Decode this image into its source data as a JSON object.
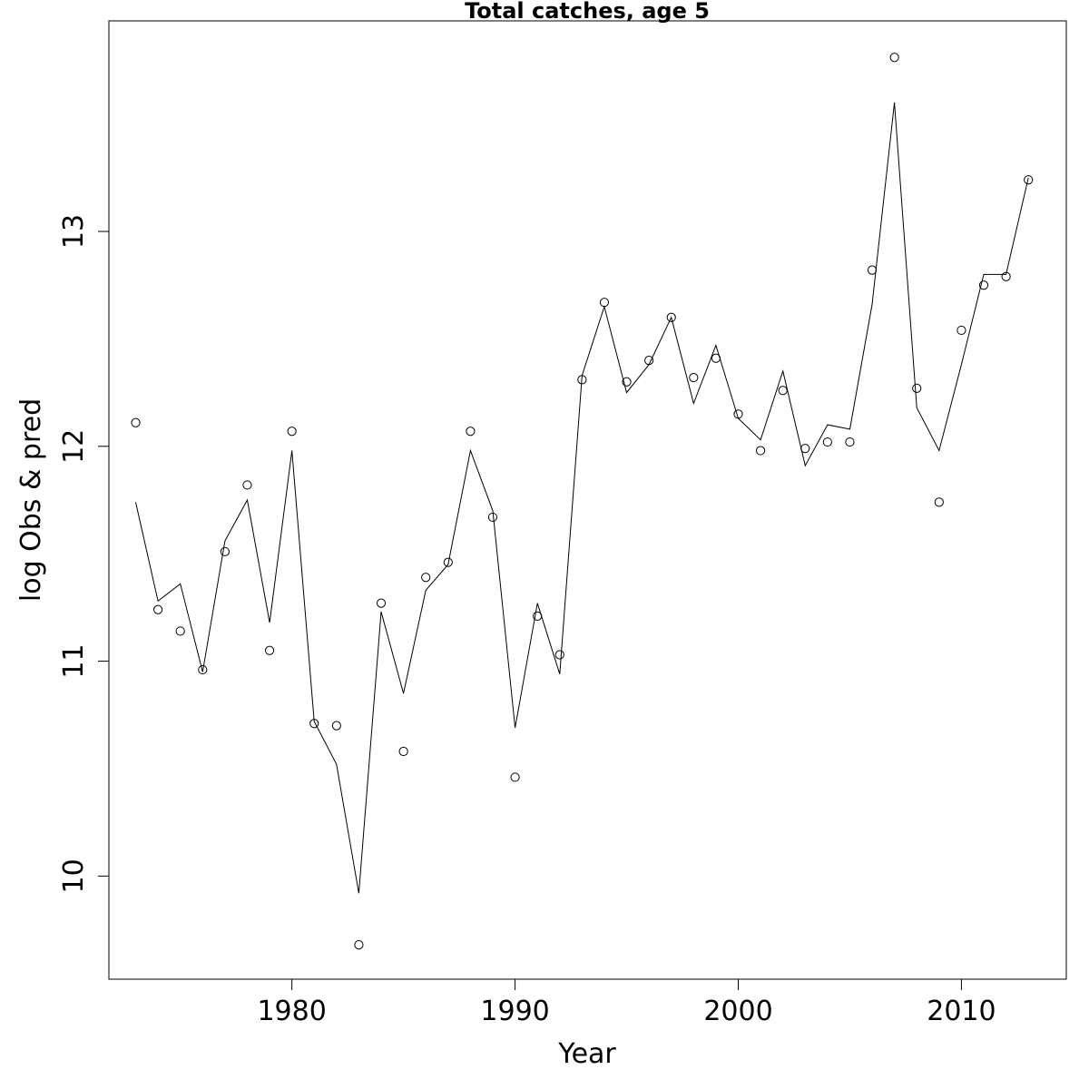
{
  "chart_data": {
    "type": "line",
    "title": "Total catches, age 5",
    "xlabel": "Year",
    "ylabel": "log Obs & pred",
    "xlim": [
      1971.8,
      2014.7
    ],
    "ylim": [
      9.52,
      13.98
    ],
    "xticks": [
      1980,
      1990,
      2000,
      2010
    ],
    "yticks": [
      10,
      11,
      12,
      13
    ],
    "grid": false,
    "legend": "none",
    "x": [
      1973,
      1974,
      1975,
      1976,
      1977,
      1978,
      1979,
      1980,
      1981,
      1982,
      1983,
      1984,
      1985,
      1986,
      1987,
      1988,
      1989,
      1990,
      1991,
      1992,
      1993,
      1994,
      1995,
      1996,
      1997,
      1998,
      1999,
      2000,
      2001,
      2002,
      2003,
      2004,
      2005,
      2006,
      2007,
      2008,
      2009,
      2010,
      2011,
      2012,
      2013
    ],
    "series": [
      {
        "style": "points",
        "values": [
          12.11,
          11.24,
          11.14,
          10.96,
          11.51,
          11.82,
          11.05,
          12.07,
          10.71,
          10.7,
          9.68,
          11.27,
          10.58,
          11.39,
          11.46,
          12.07,
          11.67,
          10.46,
          11.21,
          11.03,
          12.31,
          12.67,
          12.3,
          12.4,
          12.6,
          12.32,
          12.41,
          12.15,
          11.98,
          12.26,
          11.99,
          12.02,
          12.02,
          12.82,
          13.81,
          12.27,
          11.74,
          12.54,
          12.75,
          12.79,
          13.24
        ]
      },
      {
        "style": "line",
        "values": [
          11.74,
          11.28,
          11.36,
          10.95,
          11.56,
          11.75,
          11.18,
          11.98,
          10.72,
          10.52,
          9.92,
          11.23,
          10.85,
          11.33,
          11.45,
          11.98,
          11.7,
          10.69,
          11.27,
          10.94,
          12.33,
          12.65,
          12.25,
          12.38,
          12.6,
          12.2,
          12.47,
          12.13,
          12.03,
          12.35,
          11.91,
          12.1,
          12.08,
          12.66,
          13.6,
          12.18,
          11.98,
          12.38,
          12.8,
          12.8,
          13.25
        ]
      }
    ]
  }
}
